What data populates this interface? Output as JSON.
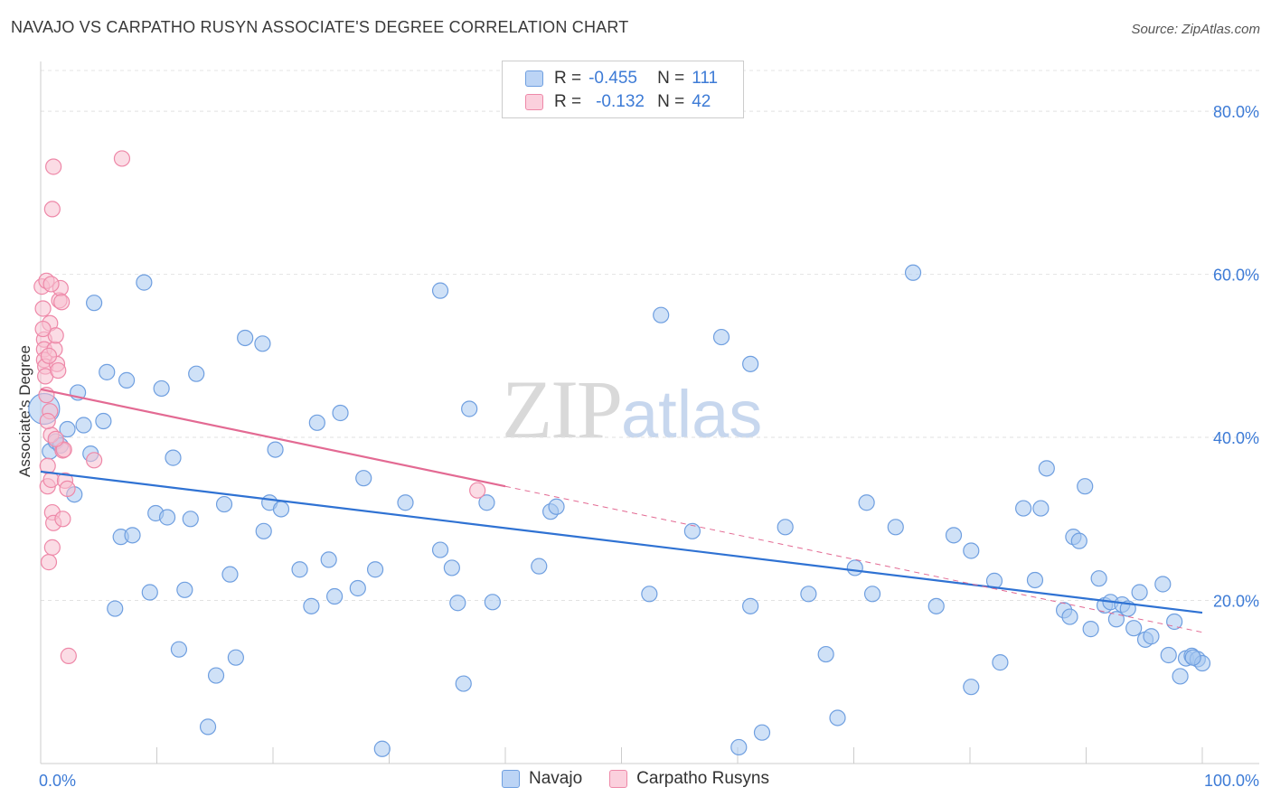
{
  "title": "NAVAJO VS CARPATHO RUSYN ASSOCIATE'S DEGREE CORRELATION CHART",
  "source": "Source: ZipAtlas.com",
  "watermark": {
    "zip": "ZIP",
    "atlas": "atlas"
  },
  "legend_top": [
    {
      "r_label": "R =",
      "r_value": "-0.455",
      "n_label": "N =",
      "n_value": "111"
    },
    {
      "r_label": "R =",
      "r_value": "-0.132",
      "n_label": "N =",
      "n_value": "42"
    }
  ],
  "chart_data": {
    "type": "scatter",
    "ylabel": "Associate's Degree",
    "xlim": [
      0,
      100
    ],
    "ylim": [
      0,
      85
    ],
    "x_tick_labels": [
      "0.0%",
      "100.0%"
    ],
    "y_ticks": [
      20,
      40,
      60,
      80
    ],
    "y_tick_labels": [
      "20.0%",
      "40.0%",
      "60.0%",
      "80.0%"
    ],
    "grid": true,
    "legend_position": "bottom-center",
    "series": [
      {
        "name": "Navajo",
        "color": "#a8c8f0",
        "stroke": "#6f9fe0",
        "trend": {
          "x": [
            0,
            100
          ],
          "y": [
            35.8,
            18.5
          ],
          "color": "#2f72d3"
        },
        "points": [
          [
            0.3,
            43.5
          ],
          [
            0.8,
            38.3
          ],
          [
            1.3,
            39.5
          ],
          [
            1.7,
            39.0
          ],
          [
            2.3,
            41.0
          ],
          [
            2.9,
            33.0
          ],
          [
            3.2,
            45.5
          ],
          [
            3.7,
            41.5
          ],
          [
            4.3,
            38.0
          ],
          [
            4.6,
            56.5
          ],
          [
            5.4,
            42.0
          ],
          [
            5.7,
            48.0
          ],
          [
            6.4,
            19.0
          ],
          [
            6.9,
            27.8
          ],
          [
            7.4,
            47.0
          ],
          [
            7.9,
            28.0
          ],
          [
            8.9,
            59.0
          ],
          [
            9.4,
            21.0
          ],
          [
            9.9,
            30.7
          ],
          [
            10.4,
            46.0
          ],
          [
            10.9,
            30.2
          ],
          [
            11.4,
            37.5
          ],
          [
            11.9,
            14.0
          ],
          [
            12.4,
            21.3
          ],
          [
            12.9,
            30.0
          ],
          [
            13.4,
            47.8
          ],
          [
            14.4,
            4.5
          ],
          [
            15.1,
            10.8
          ],
          [
            15.8,
            31.8
          ],
          [
            16.3,
            23.2
          ],
          [
            16.8,
            13.0
          ],
          [
            17.6,
            52.2
          ],
          [
            19.1,
            51.5
          ],
          [
            19.2,
            28.5
          ],
          [
            19.7,
            32.0
          ],
          [
            20.2,
            38.5
          ],
          [
            20.7,
            31.2
          ],
          [
            22.3,
            23.8
          ],
          [
            23.3,
            19.3
          ],
          [
            23.8,
            41.8
          ],
          [
            24.8,
            25.0
          ],
          [
            25.3,
            20.5
          ],
          [
            25.8,
            43.0
          ],
          [
            27.3,
            21.5
          ],
          [
            27.8,
            35.0
          ],
          [
            28.8,
            23.8
          ],
          [
            29.4,
            1.8
          ],
          [
            31.4,
            32.0
          ],
          [
            34.4,
            58.0
          ],
          [
            34.4,
            26.2
          ],
          [
            35.4,
            24.0
          ],
          [
            35.9,
            19.7
          ],
          [
            36.4,
            9.8
          ],
          [
            36.9,
            43.5
          ],
          [
            38.4,
            32.0
          ],
          [
            38.9,
            19.8
          ],
          [
            42.9,
            24.2
          ],
          [
            43.9,
            30.9
          ],
          [
            44.4,
            31.5
          ],
          [
            52.4,
            20.8
          ],
          [
            53.4,
            55.0
          ],
          [
            56.1,
            28.5
          ],
          [
            58.6,
            52.3
          ],
          [
            60.1,
            2.0
          ],
          [
            61.1,
            49.0
          ],
          [
            61.1,
            19.3
          ],
          [
            62.1,
            3.8
          ],
          [
            64.1,
            29.0
          ],
          [
            66.1,
            20.8
          ],
          [
            67.6,
            13.4
          ],
          [
            68.6,
            5.6
          ],
          [
            70.1,
            24.0
          ],
          [
            71.1,
            32.0
          ],
          [
            71.6,
            20.8
          ],
          [
            73.6,
            29.0
          ],
          [
            75.1,
            60.2
          ],
          [
            77.1,
            19.3
          ],
          [
            78.6,
            28.0
          ],
          [
            80.1,
            9.4
          ],
          [
            80.1,
            26.1
          ],
          [
            82.1,
            22.4
          ],
          [
            82.6,
            12.4
          ],
          [
            84.6,
            31.3
          ],
          [
            85.6,
            22.5
          ],
          [
            86.1,
            31.3
          ],
          [
            86.6,
            36.2
          ],
          [
            88.1,
            18.8
          ],
          [
            88.6,
            18.0
          ],
          [
            88.9,
            27.8
          ],
          [
            89.4,
            27.3
          ],
          [
            89.9,
            34.0
          ],
          [
            90.4,
            16.5
          ],
          [
            91.1,
            22.7
          ],
          [
            91.6,
            19.4
          ],
          [
            92.1,
            19.8
          ],
          [
            92.6,
            17.7
          ],
          [
            93.1,
            19.5
          ],
          [
            93.6,
            19.0
          ],
          [
            94.1,
            16.6
          ],
          [
            94.6,
            21.0
          ],
          [
            95.1,
            15.2
          ],
          [
            95.6,
            15.6
          ],
          [
            96.6,
            22.0
          ],
          [
            97.1,
            13.3
          ],
          [
            97.6,
            17.4
          ],
          [
            98.1,
            10.7
          ],
          [
            98.6,
            12.9
          ],
          [
            99.1,
            13.2
          ],
          [
            99.6,
            12.8
          ],
          [
            100.0,
            12.3
          ],
          [
            99.2,
            13.0
          ]
        ]
      },
      {
        "name": "Carpatho Rusyns",
        "color": "#f8bfd0",
        "stroke": "#ee88a8",
        "trend": {
          "x": [
            0,
            40
          ],
          "y": [
            45.9,
            34.0
          ],
          "dash_to": [
            100,
            16.1
          ],
          "color": "#e36a93"
        },
        "points": [
          [
            0.1,
            58.5
          ],
          [
            0.2,
            55.8
          ],
          [
            0.3,
            52.0
          ],
          [
            0.3,
            50.8
          ],
          [
            0.3,
            49.5
          ],
          [
            0.4,
            48.7
          ],
          [
            0.4,
            47.5
          ],
          [
            0.5,
            59.2
          ],
          [
            0.6,
            36.5
          ],
          [
            0.6,
            34.0
          ],
          [
            0.7,
            24.7
          ],
          [
            0.8,
            54.0
          ],
          [
            0.8,
            43.2
          ],
          [
            0.9,
            40.3
          ],
          [
            0.9,
            34.8
          ],
          [
            1.0,
            26.5
          ],
          [
            1.0,
            30.8
          ],
          [
            1.0,
            68.0
          ],
          [
            1.1,
            29.5
          ],
          [
            1.1,
            73.2
          ],
          [
            1.2,
            50.8
          ],
          [
            1.3,
            52.5
          ],
          [
            1.4,
            49.0
          ],
          [
            1.6,
            56.8
          ],
          [
            1.7,
            58.3
          ],
          [
            1.8,
            56.6
          ],
          [
            1.9,
            30.0
          ],
          [
            1.9,
            38.4
          ],
          [
            2.0,
            38.5
          ],
          [
            2.1,
            34.7
          ],
          [
            2.3,
            33.7
          ],
          [
            2.4,
            13.2
          ],
          [
            4.6,
            37.2
          ],
          [
            7.0,
            74.2
          ],
          [
            37.6,
            33.5
          ],
          [
            0.5,
            45.2
          ],
          [
            0.7,
            50.0
          ],
          [
            1.5,
            48.2
          ],
          [
            0.2,
            53.3
          ],
          [
            0.9,
            58.8
          ],
          [
            1.3,
            39.8
          ],
          [
            0.6,
            42.0
          ]
        ]
      }
    ]
  }
}
